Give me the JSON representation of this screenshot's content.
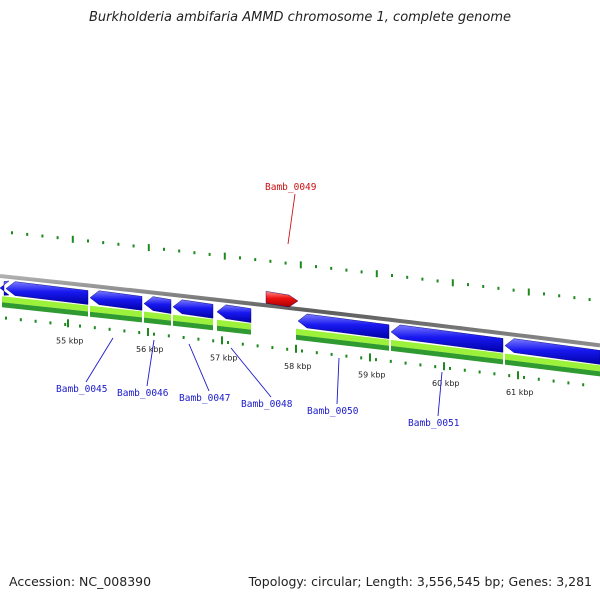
{
  "title": "Burkholderia ambifaria AMMD chromosome 1, complete genome",
  "footer": {
    "accession": "Accession: NC_008390",
    "summary": "Topology: circular; Length: 3,556,545 bp; Genes: 3,281"
  },
  "colors": {
    "cds_forward": "#0a0ae8",
    "cds_reverse": "#0a0ae8",
    "highlight_gene": "#ee1111",
    "gene_track_light": "#9cf23a",
    "gene_track_dark": "#2f9a2f",
    "backbone": "#8c8c8c",
    "tick": "#1e8a1e",
    "label_normal": "#1a1acc",
    "label_highlight": "#cc1111"
  },
  "ticks": [
    "55 kbp",
    "56 kbp",
    "57 kbp",
    "58 kbp",
    "59 kbp",
    "60 kbp",
    "61 kbp"
  ],
  "genes": [
    {
      "name": "Bamb_0045",
      "highlighted": false
    },
    {
      "name": "Bamb_0046",
      "highlighted": false
    },
    {
      "name": "Bamb_0047",
      "highlighted": false
    },
    {
      "name": "Bamb_0048",
      "highlighted": false
    },
    {
      "name": "Bamb_0049",
      "highlighted": true
    },
    {
      "name": "Bamb_0050",
      "highlighted": false
    },
    {
      "name": "Bamb_0051",
      "highlighted": false
    }
  ]
}
